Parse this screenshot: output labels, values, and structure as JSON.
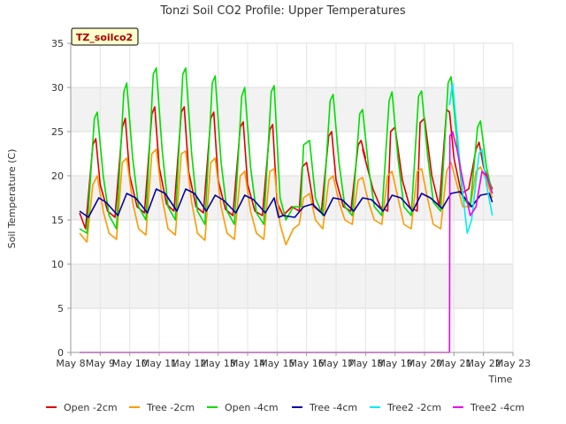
{
  "chart_data": {
    "type": "line",
    "title": "Tonzi Soil CO2 Profile: Upper Temperatures",
    "xlabel": "Time",
    "ylabel": "Soil Temperature (C)",
    "site_label": "TZ_soilco2",
    "xlim": [
      8,
      23
    ],
    "ylim": [
      0,
      35
    ],
    "x_ticks": [
      {
        "v": 8,
        "label": "May 8"
      },
      {
        "v": 9,
        "label": "May 9"
      },
      {
        "v": 10,
        "label": "May 10"
      },
      {
        "v": 11,
        "label": "May 11"
      },
      {
        "v": 12,
        "label": "May 12"
      },
      {
        "v": 13,
        "label": "May 13"
      },
      {
        "v": 14,
        "label": "May 14"
      },
      {
        "v": 15,
        "label": "May 15"
      },
      {
        "v": 16,
        "label": "May 16"
      },
      {
        "v": 17,
        "label": "May 17"
      },
      {
        "v": 18,
        "label": "May 18"
      },
      {
        "v": 19,
        "label": "May 19"
      },
      {
        "v": 20,
        "label": "May 20"
      },
      {
        "v": 21,
        "label": "May 21"
      },
      {
        "v": 22,
        "label": "May 22"
      },
      {
        "v": 23,
        "label": "May 23"
      }
    ],
    "y_ticks": [
      0,
      5,
      10,
      15,
      20,
      25,
      30,
      35
    ],
    "grid": true,
    "legend_position": "bottom",
    "series": [
      {
        "name": "Open -2cm",
        "color": "#dd0000",
        "x": [
          8.3,
          8.5,
          8.75,
          8.85,
          9.0,
          9.25,
          9.5,
          9.75,
          9.85,
          10.0,
          10.25,
          10.5,
          10.75,
          10.85,
          11.0,
          11.25,
          11.5,
          11.75,
          11.85,
          12.0,
          12.25,
          12.5,
          12.75,
          12.85,
          13.0,
          13.25,
          13.5,
          13.75,
          13.85,
          14.0,
          14.25,
          14.5,
          14.75,
          14.85,
          15.0,
          15.2,
          15.5,
          15.75,
          15.85,
          16.0,
          16.25,
          16.5,
          16.75,
          16.85,
          17.0,
          17.25,
          17.5,
          17.75,
          17.85,
          18.0,
          17.9,
          18.25,
          18.5,
          18.75,
          18.85,
          19.0,
          19.25,
          19.5,
          19.75,
          19.85,
          20.0,
          20.25,
          20.5,
          20.75,
          20.85,
          21.0,
          21.25,
          21.5,
          21.75,
          21.85,
          22.0,
          22.3
        ],
        "y": [
          15.8,
          14.0,
          23.5,
          24.2,
          19.0,
          16.0,
          15.3,
          25.5,
          26.5,
          20.0,
          16.5,
          15.8,
          27.0,
          27.8,
          21.0,
          16.8,
          16.0,
          27.2,
          27.8,
          20.5,
          16.5,
          15.8,
          26.5,
          27.2,
          19.5,
          16.2,
          15.5,
          25.5,
          26.1,
          19.0,
          16.0,
          15.5,
          25.2,
          25.8,
          17.0,
          15.5,
          16.5,
          16.0,
          21.0,
          21.5,
          16.5,
          15.8,
          24.5,
          25.0,
          19.5,
          16.5,
          16.0,
          23.5,
          24.0,
          22.0,
          23.0,
          18.5,
          16.5,
          16.0,
          25.0,
          25.5,
          19.5,
          16.5,
          16.0,
          26.0,
          26.5,
          20.0,
          16.5,
          27.5,
          27.2,
          22.0,
          18.0,
          18.5,
          23.0,
          23.8,
          21.0,
          18.5
        ]
      },
      {
        "name": "Tree -2cm",
        "color": "#ff9900",
        "x": [
          8.3,
          8.55,
          8.75,
          8.9,
          9.1,
          9.3,
          9.55,
          9.75,
          9.9,
          10.1,
          10.3,
          10.55,
          10.75,
          10.9,
          11.1,
          11.3,
          11.55,
          11.75,
          11.9,
          12.1,
          12.3,
          12.55,
          12.75,
          12.9,
          13.1,
          13.3,
          13.55,
          13.75,
          13.9,
          14.1,
          14.3,
          14.55,
          14.75,
          14.9,
          15.1,
          15.3,
          15.55,
          15.75,
          15.9,
          16.1,
          16.3,
          16.55,
          16.75,
          16.9,
          17.1,
          17.3,
          17.55,
          17.75,
          17.9,
          18.1,
          18.3,
          18.55,
          18.75,
          18.9,
          19.1,
          19.3,
          19.55,
          19.75,
          19.9,
          20.1,
          20.3,
          20.55,
          20.75,
          20.9,
          21.1,
          21.3,
          21.55,
          21.75,
          21.9,
          22.1,
          22.3
        ],
        "y": [
          13.5,
          12.5,
          19.0,
          20.0,
          16.0,
          13.5,
          12.8,
          21.5,
          22.0,
          17.0,
          14.0,
          13.3,
          22.5,
          23.0,
          17.5,
          14.0,
          13.3,
          22.5,
          22.8,
          17.0,
          13.5,
          12.7,
          21.5,
          22.0,
          16.5,
          13.5,
          12.8,
          20.0,
          20.5,
          16.0,
          13.5,
          12.8,
          20.5,
          20.8,
          14.5,
          12.2,
          14.0,
          14.5,
          17.5,
          18.0,
          15.0,
          14.0,
          19.5,
          20.0,
          17.0,
          15.0,
          14.5,
          19.5,
          19.8,
          17.0,
          15.0,
          14.5,
          20.0,
          20.5,
          17.5,
          14.5,
          14.0,
          20.5,
          20.8,
          17.5,
          14.5,
          14.0,
          20.5,
          21.5,
          19.0,
          16.5,
          16.5,
          20.5,
          21.0,
          19.5,
          17.5
        ]
      },
      {
        "name": "Open -4cm",
        "color": "#00dd00",
        "x": [
          8.3,
          8.55,
          8.8,
          8.9,
          9.1,
          9.3,
          9.55,
          9.8,
          9.9,
          10.1,
          10.3,
          10.55,
          10.8,
          10.9,
          11.1,
          11.3,
          11.55,
          11.8,
          11.9,
          12.1,
          12.3,
          12.55,
          12.8,
          12.9,
          13.1,
          13.3,
          13.55,
          13.8,
          13.9,
          14.1,
          14.3,
          14.55,
          14.8,
          14.9,
          15.1,
          15.3,
          15.55,
          15.8,
          15.9,
          16.1,
          16.3,
          16.55,
          16.8,
          16.9,
          17.1,
          17.3,
          17.55,
          17.8,
          17.9,
          18.1,
          18.3,
          18.55,
          18.8,
          18.9,
          19.1,
          19.3,
          19.55,
          19.8,
          19.9,
          20.1,
          20.3,
          20.55,
          20.8,
          20.9,
          21.1,
          21.3,
          21.55,
          21.8,
          21.9,
          22.1,
          22.3
        ],
        "y": [
          14.0,
          13.5,
          26.5,
          27.2,
          20.0,
          15.5,
          14.0,
          29.5,
          30.5,
          22.0,
          16.5,
          15.0,
          31.5,
          32.2,
          23.0,
          16.5,
          15.0,
          31.5,
          32.2,
          22.5,
          16.0,
          14.5,
          30.5,
          31.3,
          21.5,
          16.0,
          14.5,
          29.0,
          30.0,
          21.0,
          15.8,
          14.5,
          29.5,
          30.2,
          17.5,
          15.0,
          16.5,
          16.5,
          23.5,
          24.0,
          17.5,
          15.5,
          28.5,
          29.2,
          21.5,
          16.5,
          15.5,
          27.0,
          27.5,
          21.0,
          16.5,
          15.5,
          28.5,
          29.5,
          22.0,
          16.5,
          15.5,
          29.0,
          29.6,
          22.5,
          17.0,
          16.0,
          30.5,
          31.2,
          24.0,
          17.5,
          16.5,
          25.5,
          26.2,
          21.0,
          18.0
        ]
      },
      {
        "name": "Tree -4cm",
        "color": "#0000aa",
        "x": [
          8.3,
          8.6,
          8.95,
          9.2,
          9.6,
          9.9,
          10.2,
          10.6,
          10.9,
          11.2,
          11.6,
          11.9,
          12.2,
          12.6,
          12.9,
          13.2,
          13.6,
          13.9,
          14.2,
          14.6,
          14.9,
          15.05,
          15.2,
          15.6,
          15.9,
          16.2,
          16.6,
          16.9,
          17.2,
          17.6,
          17.9,
          18.2,
          18.6,
          18.9,
          19.2,
          19.6,
          19.9,
          20.2,
          20.6,
          20.9,
          21.2,
          21.6,
          21.9,
          22.2,
          22.3
        ],
        "y": [
          16.0,
          15.3,
          17.5,
          17.0,
          15.5,
          18.0,
          17.5,
          15.8,
          18.5,
          18.0,
          16.0,
          18.5,
          18.0,
          16.0,
          17.8,
          17.2,
          15.8,
          17.8,
          17.3,
          15.8,
          17.5,
          15.3,
          15.5,
          15.3,
          16.5,
          16.8,
          15.5,
          17.5,
          17.3,
          16.0,
          17.5,
          17.3,
          16.0,
          17.8,
          17.5,
          16.0,
          18.0,
          17.5,
          16.3,
          18.0,
          18.2,
          16.5,
          17.8,
          18.0,
          17.0
        ]
      },
      {
        "name": "Tree2 -2cm",
        "color": "#00eeee",
        "x": [
          20.85,
          20.95,
          21.1,
          21.3,
          21.45,
          21.6,
          21.85,
          21.95,
          22.1,
          22.3
        ],
        "y": [
          28.0,
          30.5,
          25.0,
          18.0,
          13.5,
          15.0,
          22.5,
          23.0,
          19.0,
          15.5
        ]
      },
      {
        "name": "Tree2 -4cm",
        "color": "#ee00ee",
        "x": [
          8.3,
          20.85,
          20.86,
          20.95,
          21.1,
          21.3,
          21.55,
          21.75,
          21.95,
          22.1,
          22.3
        ],
        "y": [
          0,
          0,
          24.5,
          25.0,
          23.0,
          19.5,
          15.5,
          16.5,
          20.5,
          20.0,
          18.0
        ]
      }
    ]
  }
}
